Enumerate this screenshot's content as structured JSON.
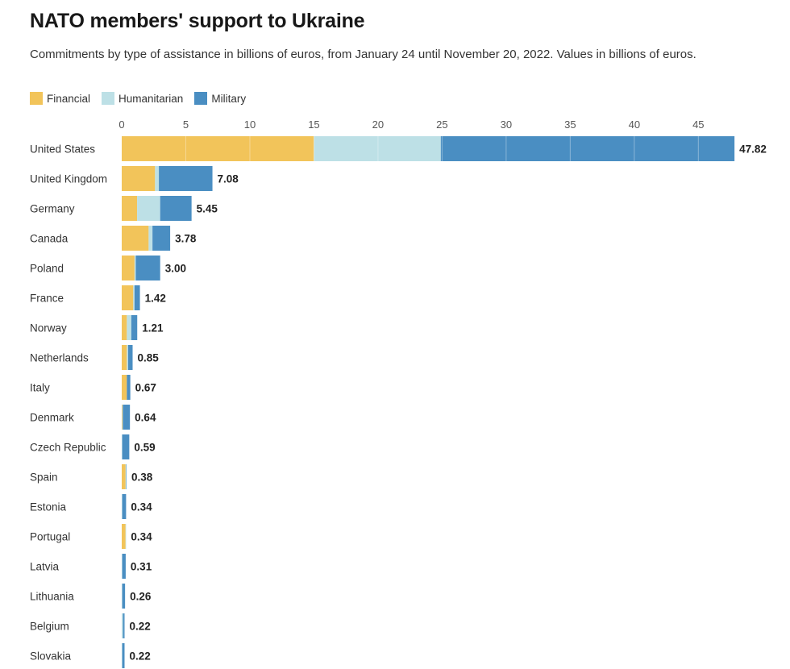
{
  "chart_data": {
    "type": "bar",
    "orientation": "horizontal",
    "stacked": true,
    "title": "NATO members' support to Ukraine",
    "subtitle": "Commitments by type of assistance in billions of euros, from January 24 until November 20, 2022. Values in billions of euros.",
    "xlim": [
      0,
      48
    ],
    "xticks": [
      0,
      5,
      10,
      15,
      20,
      25,
      30,
      35,
      40,
      45
    ],
    "categories": [
      "United States",
      "United Kingdom",
      "Germany",
      "Canada",
      "Poland",
      "France",
      "Norway",
      "Netherlands",
      "Italy",
      "Denmark",
      "Czech Republic",
      "Spain",
      "Estonia",
      "Portugal",
      "Latvia",
      "Lithuania",
      "Belgium",
      "Slovakia"
    ],
    "series": [
      {
        "name": "Financial",
        "color": "#f2c45a",
        "values": [
          15.0,
          2.6,
          1.2,
          2.1,
          1.0,
          0.9,
          0.4,
          0.4,
          0.4,
          0.05,
          0.0,
          0.3,
          0.0,
          0.3,
          0.0,
          0.0,
          0.0,
          0.0
        ]
      },
      {
        "name": "Humanitarian",
        "color": "#bde0e6",
        "values": [
          9.9,
          0.3,
          1.8,
          0.3,
          0.1,
          0.1,
          0.35,
          0.1,
          0.0,
          0.04,
          0.04,
          0.05,
          0.04,
          0.04,
          0.04,
          0.04,
          0.1,
          0.04
        ]
      },
      {
        "name": "Military",
        "color": "#4a8ec2",
        "values": [
          22.92,
          4.18,
          2.45,
          1.38,
          1.9,
          0.42,
          0.46,
          0.35,
          0.27,
          0.55,
          0.55,
          0.03,
          0.3,
          0.0,
          0.27,
          0.22,
          0.12,
          0.18
        ]
      }
    ],
    "totals": [
      "47.82",
      "7.08",
      "5.45",
      "3.78",
      "3.00",
      "1.42",
      "1.21",
      "0.85",
      "0.67",
      "0.64",
      "0.59",
      "0.38",
      "0.34",
      "0.34",
      "0.31",
      "0.26",
      "0.22",
      "0.22"
    ],
    "legend_position": "top-left",
    "grid": false
  }
}
